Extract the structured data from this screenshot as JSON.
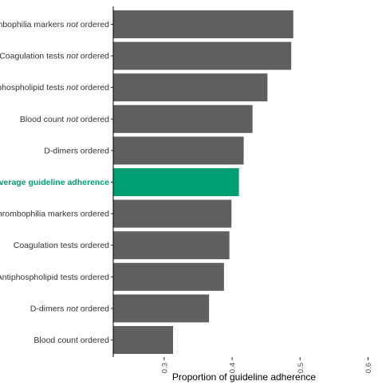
{
  "chart_data": {
    "type": "bar",
    "orientation": "horizontal",
    "xlabel": "Proportion of guideline adherence",
    "xlim": [
      0.225,
      0.61
    ],
    "xticks": [
      "0.3",
      "0.4",
      "0.5",
      "0.6"
    ],
    "xtick_values": [
      0.3,
      0.4,
      0.5,
      0.6
    ],
    "grid": false,
    "colors": {
      "default": "#5f5f5f",
      "highlight": "#009E73"
    },
    "categories": [
      {
        "parts": [
          {
            "text": "Thrombophilia markers "
          },
          {
            "text": "not",
            "italic": true
          },
          {
            "text": " ordered"
          }
        ],
        "value": 0.49,
        "highlight": false
      },
      {
        "parts": [
          {
            "text": "Coagulation tests "
          },
          {
            "text": "not",
            "italic": true
          },
          {
            "text": " ordered"
          }
        ],
        "value": 0.487,
        "highlight": false
      },
      {
        "parts": [
          {
            "text": "Antiphospholipid tests "
          },
          {
            "text": "not",
            "italic": true
          },
          {
            "text": " ordered"
          }
        ],
        "value": 0.452,
        "highlight": false
      },
      {
        "parts": [
          {
            "text": "Blood count "
          },
          {
            "text": "not",
            "italic": true
          },
          {
            "text": " ordered"
          }
        ],
        "value": 0.43,
        "highlight": false
      },
      {
        "parts": [
          {
            "text": "D-dimers ordered"
          }
        ],
        "value": 0.417,
        "highlight": false
      },
      {
        "parts": [
          {
            "text": "Average guideline adherence"
          }
        ],
        "value": 0.41,
        "highlight": true
      },
      {
        "parts": [
          {
            "text": "Thrombophilia markers ordered"
          }
        ],
        "value": 0.399,
        "highlight": false
      },
      {
        "parts": [
          {
            "text": "Coagulation tests ordered"
          }
        ],
        "value": 0.396,
        "highlight": false
      },
      {
        "parts": [
          {
            "text": "Antiphospholipid tests ordered"
          }
        ],
        "value": 0.388,
        "highlight": false
      },
      {
        "parts": [
          {
            "text": "D-dimers "
          },
          {
            "text": "not",
            "italic": true
          },
          {
            "text": " ordered"
          }
        ],
        "value": 0.366,
        "highlight": false
      },
      {
        "parts": [
          {
            "text": "Blood count ordered"
          }
        ],
        "value": 0.313,
        "highlight": false
      }
    ]
  }
}
